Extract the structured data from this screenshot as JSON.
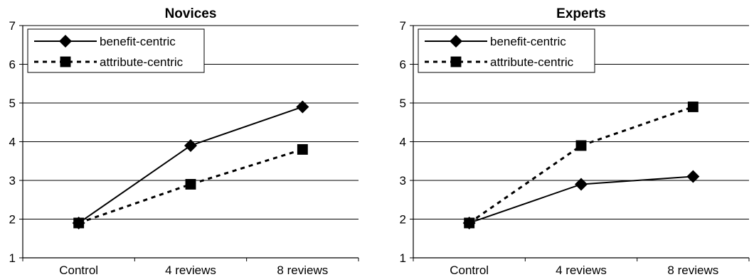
{
  "chart_data": [
    {
      "type": "line",
      "title": "Novices",
      "categories": [
        "Control",
        "4 reviews",
        "8 reviews"
      ],
      "ylim": [
        1,
        7
      ],
      "yticks": [
        1,
        2,
        3,
        4,
        5,
        6,
        7
      ],
      "grid": true,
      "legend_position": "top-left",
      "series": [
        {
          "name": "benefit-centric",
          "values": [
            1.9,
            3.9,
            4.9
          ],
          "marker": "diamond",
          "line": "solid",
          "color": "#000000"
        },
        {
          "name": "attribute-centric",
          "values": [
            1.9,
            2.9,
            3.8
          ],
          "marker": "square",
          "line": "dashed",
          "color": "#000000"
        }
      ]
    },
    {
      "type": "line",
      "title": "Experts",
      "categories": [
        "Control",
        "4 reviews",
        "8 reviews"
      ],
      "ylim": [
        1,
        7
      ],
      "yticks": [
        1,
        2,
        3,
        4,
        5,
        6,
        7
      ],
      "grid": true,
      "legend_position": "top-left",
      "series": [
        {
          "name": "benefit-centric",
          "values": [
            1.9,
            2.9,
            3.1
          ],
          "marker": "diamond",
          "line": "solid",
          "color": "#000000"
        },
        {
          "name": "attribute-centric",
          "values": [
            1.9,
            3.9,
            4.9
          ],
          "marker": "square",
          "line": "dashed",
          "color": "#000000"
        }
      ]
    }
  ]
}
